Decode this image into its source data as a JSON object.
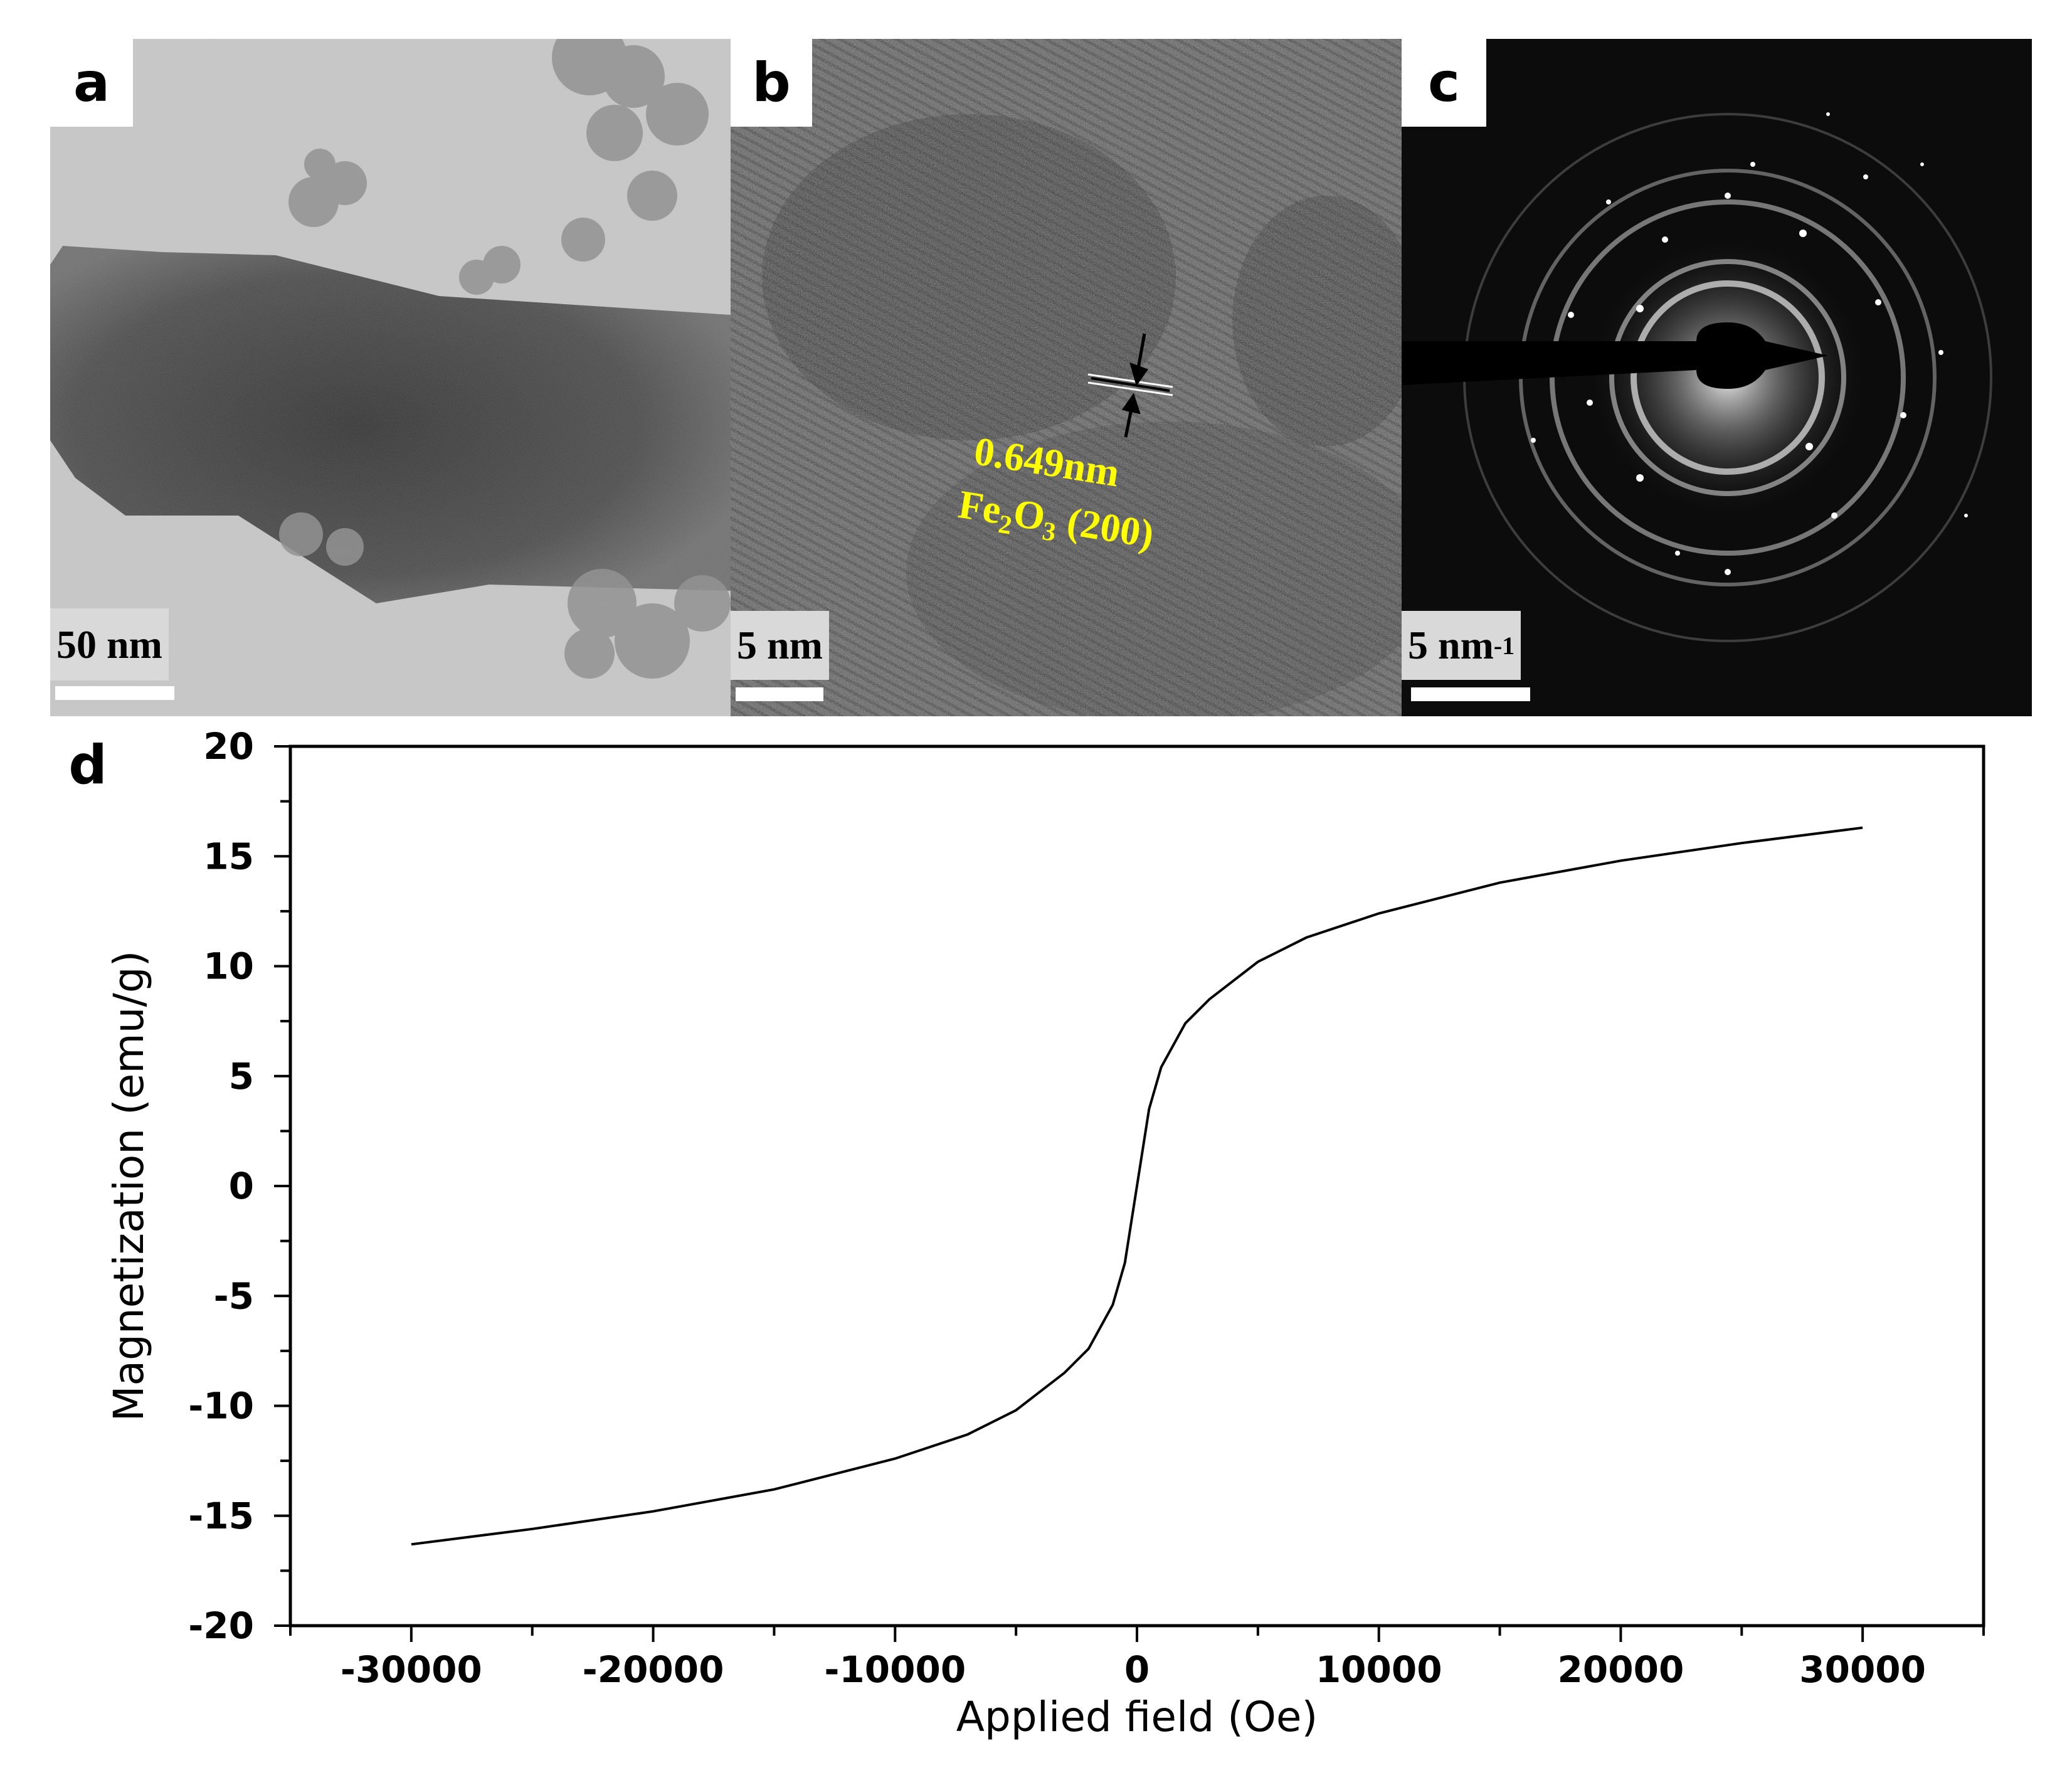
{
  "panels": {
    "a": {
      "label": "a",
      "scale": "50 nm"
    },
    "b": {
      "label": "b",
      "scale": "5 nm",
      "spacing": "0.649nm",
      "plane_prefix": "Fe",
      "plane_sub1": "2",
      "plane_mid": "O",
      "plane_sub2": "3",
      "plane_suffix": " (200)"
    },
    "c": {
      "label": "c",
      "scale": "5 nm",
      "scale_exp": "-1"
    },
    "d": {
      "label": "d"
    }
  },
  "colors": {
    "annotation": "#ffff00",
    "curve": "#000000"
  },
  "chart_data": {
    "type": "line",
    "xlabel": "Applied field (Oe)",
    "ylabel": "Magnetization (emu/g)",
    "xlim": [
      -35000,
      35000
    ],
    "ylim": [
      -20,
      20
    ],
    "xticks": [
      -30000,
      -20000,
      -10000,
      0,
      10000,
      20000,
      30000
    ],
    "xtick_labels": [
      "-30000",
      "-20000",
      "-10000",
      "0",
      "10000",
      "20000",
      "30000"
    ],
    "yticks": [
      20,
      15,
      10,
      5,
      0,
      -5,
      -10,
      -15,
      -20
    ],
    "ytick_labels": [
      "20",
      "15",
      "10",
      "5",
      "0",
      "-5",
      "-10",
      "-15",
      "-20"
    ],
    "grid": false,
    "series": [
      {
        "x": [
          -30000,
          -25000,
          -20000,
          -15000,
          -10000,
          -7000,
          -5000,
          -3000,
          -2000,
          -1000,
          -500,
          0,
          500,
          1000,
          2000,
          3000,
          5000,
          7000,
          10000,
          15000,
          20000,
          25000,
          30000
        ],
        "y": [
          -16.3,
          -15.6,
          -14.8,
          -13.8,
          -12.4,
          -11.3,
          -10.2,
          -8.5,
          -7.4,
          -5.4,
          -3.5,
          0,
          3.5,
          5.4,
          7.4,
          8.5,
          10.2,
          11.3,
          12.4,
          13.8,
          14.8,
          15.6,
          16.3
        ]
      }
    ]
  }
}
